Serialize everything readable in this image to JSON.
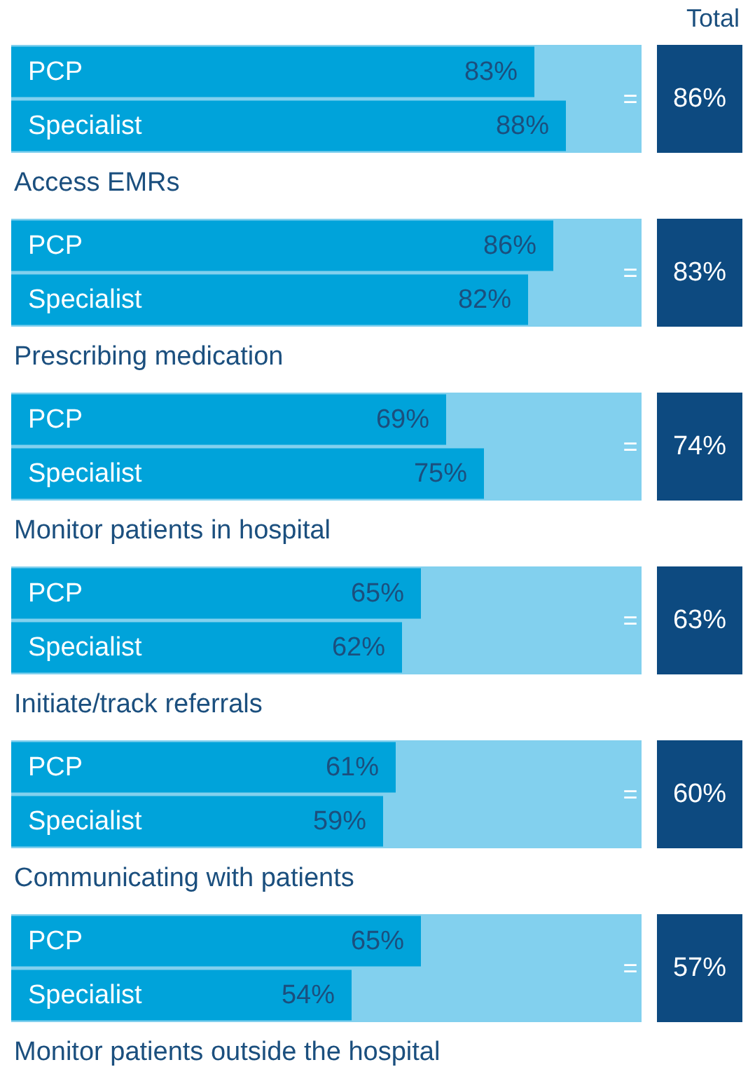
{
  "chart_data": [
    {
      "type": "bar",
      "orientation": "horizontal",
      "categories": [
        "PCP",
        "Specialist"
      ],
      "values": [
        83,
        88
      ],
      "color": "#00a3da",
      "tick_labels": "y",
      "value_labels": [
        "83%",
        "88%"
      ],
      "xlabel": "Access EMRs",
      "annotations": [
        "Total",
        "=",
        "86%"
      ]
    },
    {
      "type": "bar",
      "orientation": "horizontal",
      "categories": [
        "PCP",
        "Specialist"
      ],
      "values": [
        86,
        82
      ],
      "color": "#00a3da",
      "tick_labels": "y",
      "value_labels": [
        "86%",
        "82%"
      ],
      "xlabel": "Prescribing medication",
      "annotations": [
        "=",
        "83%"
      ]
    },
    {
      "type": "bar",
      "orientation": "horizontal",
      "categories": [
        "PCP",
        "Specialist"
      ],
      "values": [
        69,
        75
      ],
      "color": "#00a3da",
      "tick_labels": "y",
      "value_labels": [
        "69%",
        "75%"
      ],
      "xlabel": "Monitor patients in hospital",
      "annotations": [
        "=",
        "74%"
      ]
    },
    {
      "type": "bar",
      "orientation": "horizontal",
      "categories": [
        "PCP",
        "Specialist"
      ],
      "values": [
        65,
        62
      ],
      "color": "#00a3da",
      "tick_labels": "y",
      "value_labels": [
        "65%",
        "62%"
      ],
      "xlabel": "Initiate/track referrals",
      "annotations": [
        "=",
        "63%"
      ]
    },
    {
      "type": "bar",
      "orientation": "horizontal",
      "categories": [
        "PCP",
        "Specialist"
      ],
      "values": [
        61,
        59
      ],
      "color": "#00a3da",
      "tick_labels": "y",
      "value_labels": [
        "61%",
        "59%"
      ],
      "xlabel": "Communicating with patients",
      "annotations": [
        "=",
        "60%"
      ]
    },
    {
      "type": "bar",
      "orientation": "horizontal",
      "categories": [
        "PCP",
        "Specialist"
      ],
      "values": [
        65,
        54
      ],
      "color": "#00a3da",
      "tick_labels": "y",
      "value_labels": [
        "65%",
        "54%"
      ],
      "xlabel": "Monitor patients outside the hospital",
      "annotations": [
        "=",
        "57%"
      ]
    }
  ]
}
